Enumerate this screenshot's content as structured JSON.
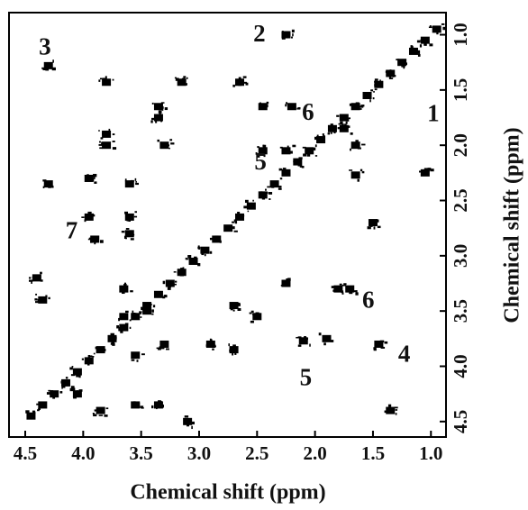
{
  "chart_data": {
    "type": "scatter",
    "x_label": "Chemical shift (ppm)",
    "y_label": "Chemical shift (ppm)",
    "xlim": [
      4.64,
      0.87
    ],
    "ylim": [
      4.64,
      0.8
    ],
    "xticks": [
      4.5,
      {
        "value": 4,
        "label": "4.0"
      },
      3.5,
      {
        "value": 3,
        "label": "3.0"
      },
      2.5,
      {
        "value": 2,
        "label": "2.0"
      },
      1.5,
      {
        "value": 1,
        "label": "1.0"
      }
    ],
    "yticks": [
      {
        "value": 1,
        "label": "1.0"
      },
      1.5,
      {
        "value": 2,
        "label": "2.0"
      },
      2.5,
      {
        "value": 3,
        "label": "3.0"
      },
      3.5,
      {
        "value": 4,
        "label": "4.0"
      },
      4.5
    ],
    "color": "#000000",
    "x": [
      4.45,
      4.35,
      4.25,
      4.15,
      4.05,
      3.95,
      3.85,
      3.75,
      3.65,
      3.55,
      3.45,
      3.35,
      3.25,
      3.15,
      3.05,
      2.95,
      2.85,
      2.75,
      2.65,
      2.55,
      2.45,
      2.35,
      2.25,
      2.15,
      2.05,
      1.95,
      1.85,
      1.75,
      1.65,
      1.55,
      1.45,
      1.35,
      1.25,
      1.15,
      1.05,
      0.95,
      4.3,
      1.35,
      2.25,
      1.05,
      3.8,
      1.45,
      3.15,
      2.65,
      3.35,
      3.35,
      3.8,
      3.8,
      2.1,
      1.9,
      3.3,
      2.45,
      2.2,
      1.75,
      1.65,
      2.45,
      2.25,
      3.6,
      3.95,
      4.3,
      3.95,
      3.6,
      1.65,
      1.5,
      3.9,
      3.6,
      1.8,
      1.7,
      2.25,
      2.5,
      2.7,
      4.4,
      4.35,
      3.65,
      3.45,
      3.65,
      3.35,
      3.55,
      3.1,
      4.05,
      3.85,
      2.9,
      2.7,
      3.3,
      3.55
    ],
    "y": [
      4.45,
      4.35,
      4.25,
      4.15,
      4.05,
      3.95,
      3.85,
      3.75,
      3.65,
      3.55,
      3.45,
      3.35,
      3.25,
      3.15,
      3.05,
      2.95,
      2.85,
      2.75,
      2.65,
      2.55,
      2.45,
      2.35,
      2.25,
      2.15,
      2.05,
      1.95,
      1.85,
      1.75,
      1.65,
      1.55,
      1.45,
      1.35,
      1.25,
      1.15,
      1.05,
      0.95,
      1.28,
      4.4,
      1.0,
      2.25,
      1.43,
      3.8,
      1.43,
      1.43,
      1.65,
      1.75,
      1.9,
      2.0,
      3.77,
      3.75,
      2.0,
      1.65,
      1.65,
      1.85,
      2.0,
      2.05,
      2.05,
      2.35,
      2.3,
      2.35,
      2.65,
      2.65,
      2.27,
      2.7,
      2.85,
      2.8,
      3.3,
      3.3,
      3.25,
      3.55,
      3.45,
      3.2,
      3.4,
      3.55,
      3.5,
      3.3,
      4.35,
      4.35,
      4.5,
      4.25,
      4.4,
      3.8,
      3.85,
      3.8,
      3.9
    ],
    "annotations": [
      {
        "text": "3",
        "x": 4.33,
        "y": 1.13
      },
      {
        "text": "2",
        "x": 2.48,
        "y": 1.01
      },
      {
        "text": "1",
        "x": 0.98,
        "y": 1.73
      },
      {
        "text": "6",
        "x": 2.06,
        "y": 1.72
      },
      {
        "text": "5",
        "x": 2.47,
        "y": 2.17
      },
      {
        "text": "7",
        "x": 4.1,
        "y": 2.79
      },
      {
        "text": "6",
        "x": 1.54,
        "y": 3.42
      },
      {
        "text": "4",
        "x": 1.23,
        "y": 3.91
      },
      {
        "text": "5",
        "x": 2.08,
        "y": 4.12
      }
    ]
  }
}
